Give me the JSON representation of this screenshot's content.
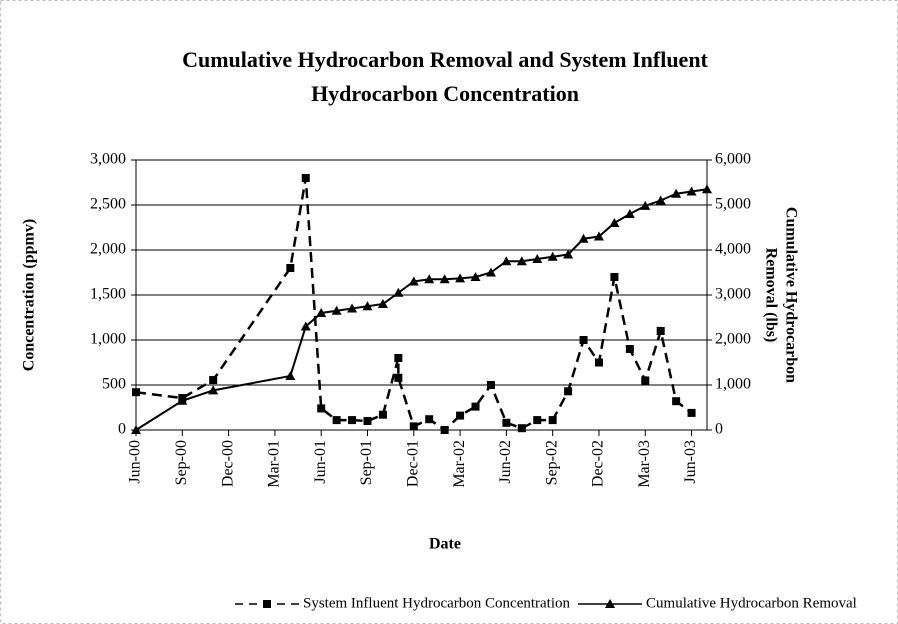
{
  "chart_data": {
    "type": "line",
    "title": [
      "Cumulative Hydrocarbon Removal and System Influent",
      "Hydrocarbon Concentration"
    ],
    "x_label": "Date",
    "y_label": "Concentration (ppmv)",
    "y2_label": [
      "Cumulative Hydrocarbon",
      "Removal (lbs)"
    ],
    "xlim": [
      "2000-06",
      "2003-07"
    ],
    "xticks": [
      {
        "value": "2000-06",
        "label": "Jun-00"
      },
      {
        "value": "2000-09",
        "label": "Sep-00"
      },
      {
        "value": "2000-12",
        "label": "Dec-00"
      },
      {
        "value": "2001-03",
        "label": "Mar-01"
      },
      {
        "value": "2001-06",
        "label": "Jun-01"
      },
      {
        "value": "2001-09",
        "label": "Sep-01"
      },
      {
        "value": "2001-12",
        "label": "Dec-01"
      },
      {
        "value": "2002-03",
        "label": "Mar-02"
      },
      {
        "value": "2002-06",
        "label": "Jun-02"
      },
      {
        "value": "2002-09",
        "label": "Sep-02"
      },
      {
        "value": "2002-12",
        "label": "Dec-02"
      },
      {
        "value": "2003-03",
        "label": "Mar-03"
      },
      {
        "value": "2003-06",
        "label": "Jun-03"
      }
    ],
    "ylim": [
      0,
      3000
    ],
    "yticks": [
      0,
      500,
      {
        "value": 1000,
        "label": "1,000"
      },
      {
        "value": 1500,
        "label": "1,500"
      },
      {
        "value": 2000,
        "label": "2,000"
      },
      {
        "value": 2500,
        "label": "2,500"
      },
      {
        "value": 3000,
        "label": "3,000"
      }
    ],
    "y2lim": [
      0,
      6000
    ],
    "y2ticks": [
      0,
      {
        "value": 1000,
        "label": "1,000"
      },
      {
        "value": 2000,
        "label": "2,000"
      },
      {
        "value": 3000,
        "label": "3,000"
      },
      {
        "value": 4000,
        "label": "4,000"
      },
      {
        "value": 5000,
        "label": "5,000"
      },
      {
        "value": 6000,
        "label": "6,000"
      }
    ],
    "grid": true,
    "legend": "bottom",
    "series": [
      {
        "name": "System Influent Hydrocarbon Concentration",
        "color": "#000000",
        "line_style": "dashed",
        "marker": "square",
        "x": [
          "2000-06",
          "2000-09",
          "2000-11",
          "2001-04",
          "2001-05",
          "2001-06",
          "2001-07",
          "2001-08",
          "2001-09",
          "2001-10",
          "2001-11",
          "2001-11",
          "2001-12",
          "2002-01",
          "2002-02",
          "2002-03",
          "2002-04",
          "2002-05",
          "2002-06",
          "2002-07",
          "2002-08",
          "2002-09",
          "2002-10",
          "2002-11",
          "2002-12",
          "2003-01",
          "2003-02",
          "2003-03",
          "2003-04",
          "2003-05",
          "2003-06"
        ],
        "values": [
          420,
          355,
          555,
          1800,
          2800,
          240,
          110,
          110,
          100,
          170,
          800,
          580,
          40,
          120,
          0,
          160,
          260,
          500,
          80,
          20,
          110,
          110,
          430,
          1000,
          750,
          1700,
          900,
          550,
          1100,
          320,
          190
        ]
      },
      {
        "name": "Cumulative Hydrocarbon Removal",
        "color": "#000000",
        "line_style": "solid",
        "marker": "triangle",
        "axis": "y2",
        "x": [
          "2000-06",
          "2000-09",
          "2000-11",
          "2001-04",
          "2001-05",
          "2001-06",
          "2001-07",
          "2001-08",
          "2001-09",
          "2001-10",
          "2001-11",
          "2001-12",
          "2002-01",
          "2002-02",
          "2002-03",
          "2002-04",
          "2002-05",
          "2002-06",
          "2002-07",
          "2002-08",
          "2002-09",
          "2002-10",
          "2002-11",
          "2002-12",
          "2003-01",
          "2003-02",
          "2003-03",
          "2003-04",
          "2003-05",
          "2003-06",
          "2003-07"
        ],
        "values": [
          0,
          650,
          880,
          1200,
          2300,
          2600,
          2650,
          2700,
          2750,
          2800,
          3050,
          3300,
          3350,
          3350,
          3370,
          3400,
          3500,
          3750,
          3750,
          3800,
          3850,
          3900,
          4250,
          4300,
          4600,
          4800,
          4980,
          5100,
          5250,
          5300,
          5350
        ]
      }
    ]
  }
}
